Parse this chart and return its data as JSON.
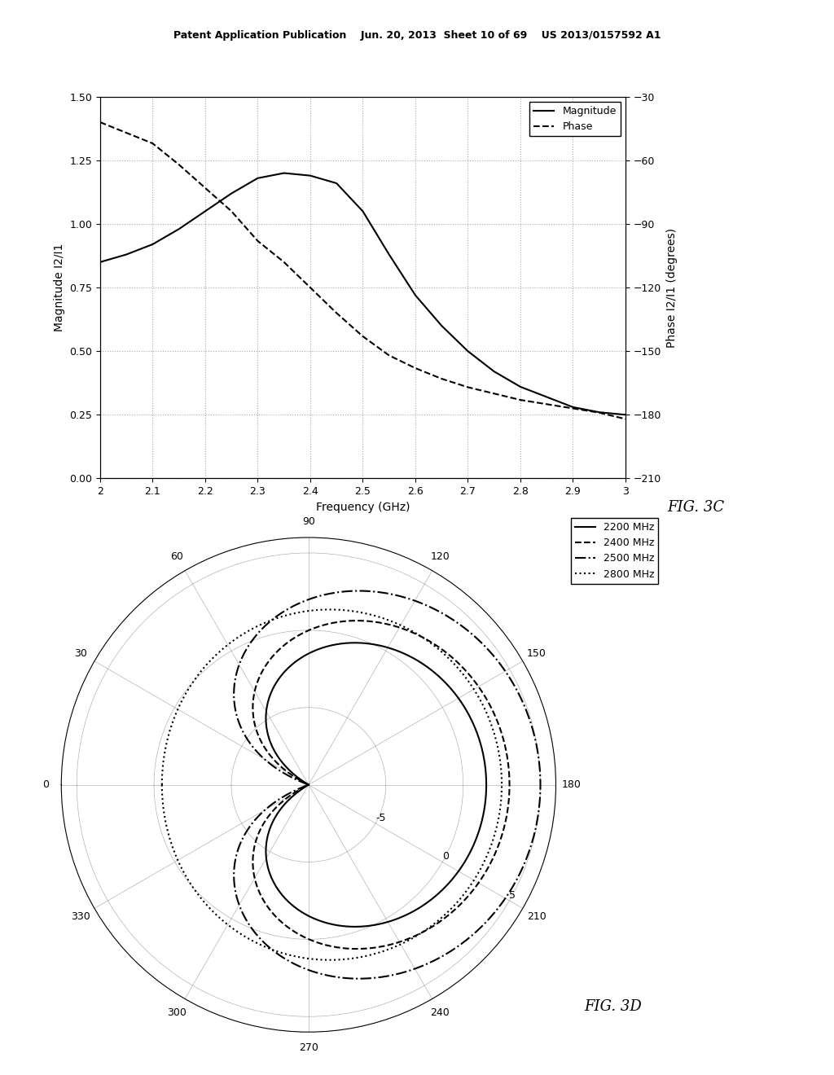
{
  "fig3c": {
    "xlabel": "Frequency (GHz)",
    "ylabel_left": "Magnitude I2/I1",
    "ylabel_right": "Phase I2/I1 (degrees)",
    "xlim": [
      2.0,
      3.0
    ],
    "ylim_left": [
      0,
      1.5
    ],
    "ylim_right": [
      -210,
      -30
    ],
    "xticks": [
      2.0,
      2.1,
      2.2,
      2.3,
      2.4,
      2.5,
      2.6,
      2.7,
      2.8,
      2.9,
      3.0
    ],
    "yticks_left": [
      0,
      0.25,
      0.5,
      0.75,
      1.0,
      1.25,
      1.5
    ],
    "yticks_right": [
      -210,
      -180,
      -150,
      -120,
      -90,
      -60,
      -30
    ],
    "magnitude_x": [
      2.0,
      2.05,
      2.1,
      2.15,
      2.2,
      2.25,
      2.3,
      2.35,
      2.4,
      2.45,
      2.5,
      2.55,
      2.6,
      2.65,
      2.7,
      2.75,
      2.8,
      2.85,
      2.9,
      2.95,
      3.0
    ],
    "magnitude_y": [
      0.85,
      0.88,
      0.92,
      0.98,
      1.05,
      1.12,
      1.18,
      1.2,
      1.19,
      1.16,
      1.05,
      0.88,
      0.72,
      0.6,
      0.5,
      0.42,
      0.36,
      0.32,
      0.28,
      0.26,
      0.25
    ],
    "phase_x": [
      2.0,
      2.05,
      2.1,
      2.15,
      2.2,
      2.25,
      2.3,
      2.35,
      2.4,
      2.45,
      2.5,
      2.55,
      2.6,
      2.65,
      2.7,
      2.75,
      2.8,
      2.85,
      2.9,
      2.95,
      3.0
    ],
    "phase_y": [
      -42,
      -47,
      -52,
      -62,
      -73,
      -84,
      -98,
      -108,
      -120,
      -132,
      -143,
      -152,
      -158,
      -163,
      -167,
      -170,
      -173,
      -175,
      -177,
      -179,
      -182
    ],
    "legend_magnitude": "Magnitude",
    "legend_phase": "Phase",
    "grid_color": "#aaaaaa"
  },
  "fig3d": {
    "r_tick_dB": [
      -5,
      0,
      5
    ],
    "r_min_db": -10,
    "r_max_db": 6,
    "theta_ticks_deg": [
      0,
      30,
      60,
      90,
      120,
      150,
      180,
      210,
      240,
      270,
      300,
      330
    ],
    "legend_entries": [
      "2200 MHz",
      "2400 MHz",
      "2500 MHz",
      "2800 MHz"
    ],
    "line_styles": [
      "-",
      "--",
      "-.",
      ":"
    ]
  },
  "header_text": "Patent Application Publication    Jun. 20, 2013  Sheet 10 of 69    US 2013/0157592 A1",
  "fig3c_label": "FIG. 3C",
  "fig3d_label": "FIG. 3D",
  "background_color": "#ffffff"
}
